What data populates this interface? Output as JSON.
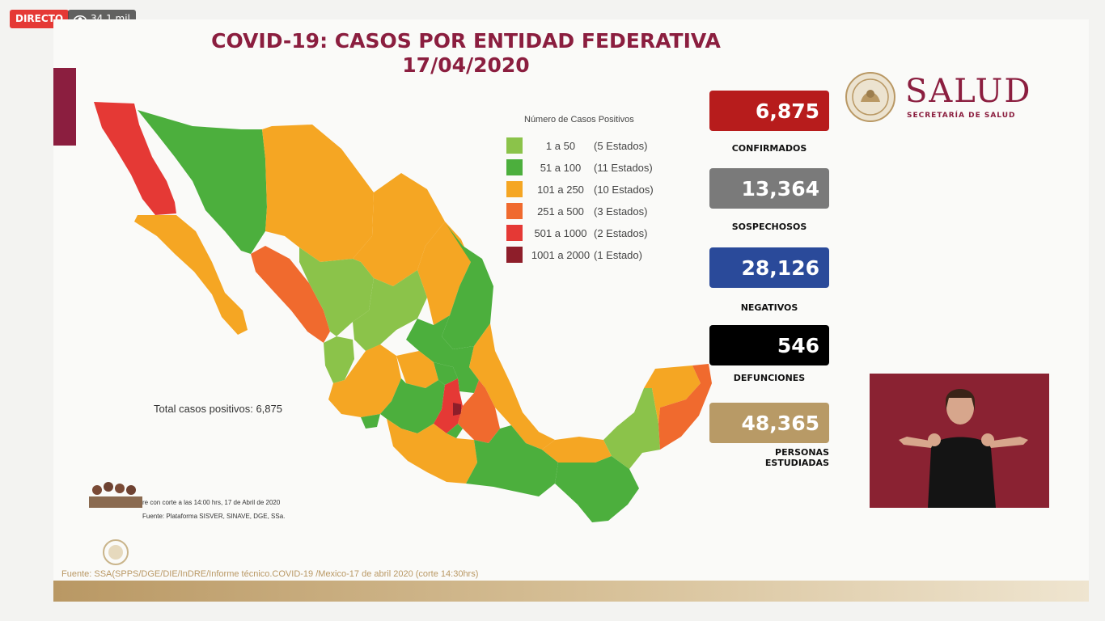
{
  "overlay": {
    "live_label": "DIRECTO",
    "views_label": "34,1 mil",
    "views_icon": "eye-icon"
  },
  "slide": {
    "title_line1": "COVID-19: CASOS POR ENTIDAD FEDERATIVA",
    "title_line2": "17/04/2020",
    "logo": {
      "name": "SALUD",
      "subtitle": "SECRETARÍA DE SALUD",
      "seal_icon": "coat-of-arms-seal"
    },
    "legend": {
      "title": "Número de Casos Positivos",
      "items": [
        {
          "range": "1 a 50",
          "states": "(5 Estados)",
          "color": "#8bc34a"
        },
        {
          "range": "51 a 100",
          "states": "(11 Estados)",
          "color": "#4caf3d"
        },
        {
          "range": "101 a 250",
          "states": "(10 Estados)",
          "color": "#f5a623"
        },
        {
          "range": "251 a 500",
          "states": "(3 Estados)",
          "color": "#f06a2e"
        },
        {
          "range": "501 a 1000",
          "states": "(2 Estados)",
          "color": "#e53935"
        },
        {
          "range": "1001 a 2000",
          "states": "(1 Estado)",
          "color": "#8e1e2a"
        }
      ]
    },
    "total_positive": "Total casos positivos: 6,875",
    "foot_note_1": "re con corte a las 14:00 hrs, 17 de Abril de 2020",
    "foot_note_2": "Fuente: Plataforma SISVER, SINAVE, DGE, SSa.",
    "source": "Fuente: SSA(SPPS/DGE/DIE/InDRE/Informe técnico.COVID-19 /Mexico-17 de abril 2020 (corte 14:30hrs)",
    "stats": [
      {
        "value": "6,875",
        "label": "CONFIRMADOS",
        "color": "#b71c1c"
      },
      {
        "value": "13,364",
        "label": "SOSPECHOSOS",
        "color": "#7a7a7a"
      },
      {
        "value": "28,126",
        "label": "NEGATIVOS",
        "color": "#2a4a9a"
      },
      {
        "value": "546",
        "label": "DEFUNCIONES",
        "color": "#000000"
      },
      {
        "value": "48,365",
        "label_line1": "PERSONAS",
        "label_line2": "ESTUDIADAS",
        "color": "#b89a66"
      }
    ]
  },
  "map": {
    "colors": {
      "light_green": "#8bc34a",
      "green": "#4caf3d",
      "orange": "#f5a623",
      "dark_orange": "#f06a2e",
      "red": "#e53935",
      "maroon": "#8e1e2a"
    }
  }
}
